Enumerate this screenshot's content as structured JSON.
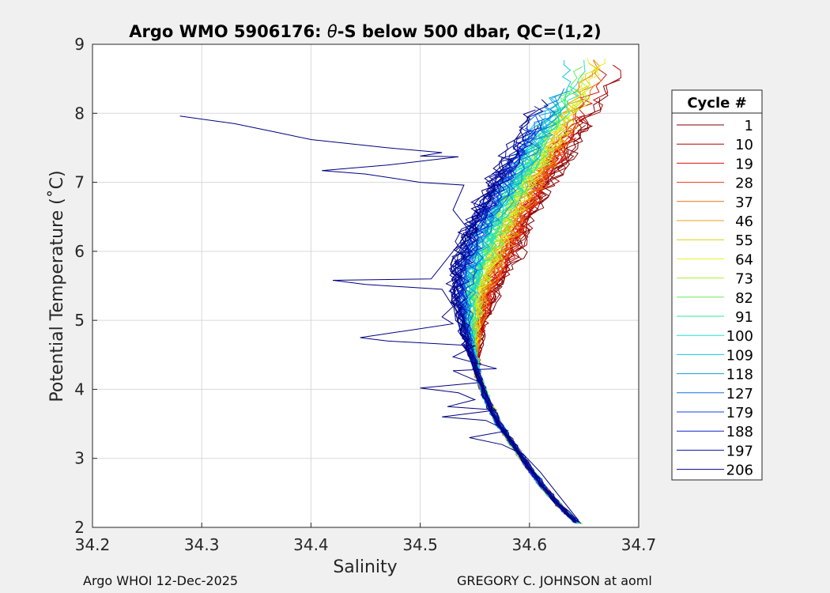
{
  "chart_data": {
    "type": "line",
    "title_prefix": "Argo WMO 5906176: ",
    "title_symbol": "θ",
    "title_suffix": "-S below 500 dbar,  QC=(1,2)",
    "xlabel": "Salinity",
    "ylabel": "Potential Temperature (˚C)",
    "xlim": [
      34.2,
      34.7
    ],
    "ylim": [
      2,
      9
    ],
    "xticks": [
      "34.2",
      "34.3",
      "34.4",
      "34.5",
      "34.6",
      "34.7"
    ],
    "yticks": [
      "2",
      "3",
      "4",
      "5",
      "6",
      "7",
      "8",
      "9"
    ],
    "grid": true,
    "legend_position": "right",
    "legend_title": "Cycle #",
    "legend": [
      {
        "label": "1",
        "color": "#800000"
      },
      {
        "label": "10",
        "color": "#b00000"
      },
      {
        "label": "19",
        "color": "#d81010"
      },
      {
        "label": "28",
        "color": "#e83a10"
      },
      {
        "label": "37",
        "color": "#e87010"
      },
      {
        "label": "46",
        "color": "#e8a010"
      },
      {
        "label": "55",
        "color": "#d8d010"
      },
      {
        "label": "64",
        "color": "#e8f020"
      },
      {
        "label": "73",
        "color": "#a8f030"
      },
      {
        "label": "82",
        "color": "#60f050"
      },
      {
        "label": "91",
        "color": "#30e890"
      },
      {
        "label": "100",
        "color": "#20e0d0"
      },
      {
        "label": "109",
        "color": "#10c8e8"
      },
      {
        "label": "118",
        "color": "#10a0d8"
      },
      {
        "label": "127",
        "color": "#1070e0"
      },
      {
        "label": "179",
        "color": "#1040e0"
      },
      {
        "label": "188",
        "color": "#1020c8"
      },
      {
        "label": "197",
        "color": "#0a10a8"
      },
      {
        "label": "206",
        "color": "#000080"
      }
    ],
    "series_shape": {
      "core": [
        [
          34.645,
          2.05
        ],
        [
          34.628,
          2.3
        ],
        [
          34.612,
          2.6
        ],
        [
          34.598,
          2.9
        ],
        [
          34.585,
          3.2
        ],
        [
          34.572,
          3.5
        ],
        [
          34.561,
          3.85
        ],
        [
          34.553,
          4.2
        ],
        [
          34.548,
          4.6
        ],
        [
          34.547,
          5.0
        ],
        [
          34.549,
          5.4
        ],
        [
          34.556,
          5.8
        ],
        [
          34.566,
          6.2
        ],
        [
          34.578,
          6.6
        ],
        [
          34.592,
          7.0
        ],
        [
          34.607,
          7.4
        ],
        [
          34.622,
          7.8
        ],
        [
          34.637,
          8.2
        ],
        [
          34.652,
          8.6
        ]
      ],
      "outlier_cycle": "206",
      "outlier_path": [
        [
          34.28,
          7.96
        ],
        [
          34.33,
          7.85
        ],
        [
          34.37,
          7.72
        ],
        [
          34.4,
          7.62
        ],
        [
          34.47,
          7.5
        ],
        [
          34.52,
          7.43
        ],
        [
          34.5,
          7.38
        ],
        [
          34.535,
          7.37
        ],
        [
          34.47,
          7.25
        ],
        [
          34.41,
          7.17
        ],
        [
          34.45,
          7.12
        ],
        [
          34.5,
          7.0
        ],
        [
          34.54,
          6.96
        ],
        [
          34.53,
          6.6
        ],
        [
          34.545,
          6.3
        ],
        [
          34.53,
          6.0
        ],
        [
          34.51,
          5.6
        ],
        [
          34.42,
          5.58
        ],
        [
          34.45,
          5.52
        ],
        [
          34.52,
          5.45
        ],
        [
          34.53,
          5.2
        ],
        [
          34.52,
          5.05
        ],
        [
          34.53,
          4.95
        ],
        [
          34.445,
          4.75
        ],
        [
          34.47,
          4.7
        ],
        [
          34.55,
          4.63
        ],
        [
          34.53,
          4.47
        ],
        [
          34.57,
          4.3
        ],
        [
          34.53,
          4.27
        ],
        [
          34.555,
          4.1
        ],
        [
          34.5,
          4.02
        ],
        [
          34.535,
          3.95
        ],
        [
          34.55,
          3.85
        ],
        [
          34.525,
          3.75
        ],
        [
          34.57,
          3.7
        ],
        [
          34.52,
          3.6
        ],
        [
          34.56,
          3.55
        ],
        [
          34.58,
          3.4
        ],
        [
          34.545,
          3.3
        ],
        [
          34.575,
          3.2
        ],
        [
          34.595,
          3.05
        ],
        [
          34.61,
          2.8
        ],
        [
          34.625,
          2.5
        ],
        [
          34.645,
          2.1
        ]
      ]
    }
  },
  "footer": {
    "left": "Argo WHOI 12-Dec-2025",
    "right": "GREGORY C. JOHNSON at aoml"
  }
}
